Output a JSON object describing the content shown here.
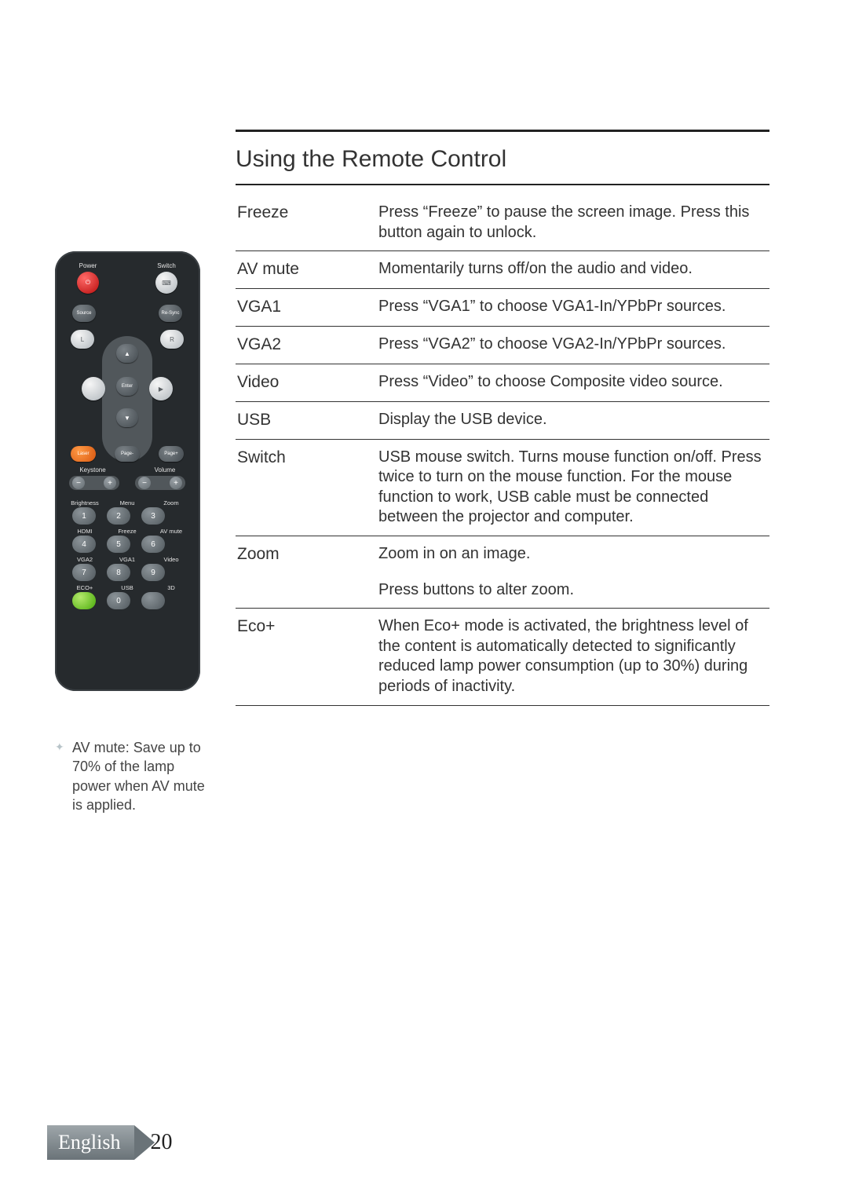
{
  "section_title": "Using the Remote Control",
  "rows": [
    {
      "k": "Freeze",
      "v": "Press “Freeze” to pause the screen image. Press this button again to unlock."
    },
    {
      "k": "AV mute",
      "v": "Momentarily turns off/on the audio and video."
    },
    {
      "k": "VGA1",
      "v": "Press “VGA1” to choose VGA1-In/YPbPr sources."
    },
    {
      "k": "VGA2",
      "v": "Press “VGA2” to choose VGA2-In/YPbPr sources."
    },
    {
      "k": "Video",
      "v": "Press “Video” to choose Composite video source."
    },
    {
      "k": "USB",
      "v": "Display the USB device."
    },
    {
      "k": "Switch",
      "v": "USB mouse switch. Turns mouse function on/off. Press twice to turn on the mouse function. For the mouse function to work, USB cable must be connected between the projector and computer."
    },
    {
      "k": "Zoom",
      "v": "Zoom in on an image."
    },
    {
      "k": "",
      "v": "Press          buttons to alter zoom."
    },
    {
      "k": "Eco+",
      "v": "When Eco+ mode is activated, the brightness level of the content is automatically detected to significantly reduced lamp power consumption (up to 30%) during periods of inactivity."
    }
  ],
  "note": "AV mute: Save up to 70% of the lamp power when AV mute is applied.",
  "footer": {
    "lang": "English",
    "page": "20"
  },
  "remote": {
    "topLabels": {
      "power": "Power",
      "switch": "Switch"
    },
    "midLabels": {
      "source": "Source",
      "resync": "Re-Sync",
      "L": "L",
      "R": "R",
      "enter": "Enter",
      "laser": "Laser",
      "pageM": "Page-",
      "pageP": "Page+"
    },
    "sliders": {
      "keystone": "Keystone",
      "volume": "Volume"
    },
    "numLabels": [
      [
        "Brightness",
        "Menu",
        "Zoom"
      ],
      [
        "HDMI",
        "Freeze",
        "AV mute"
      ],
      [
        "VGA2",
        "VGA1",
        "Video"
      ],
      [
        "ECO+",
        "USB",
        "3D"
      ]
    ],
    "nums": [
      [
        "1",
        "2",
        "3"
      ],
      [
        "4",
        "5",
        "6"
      ],
      [
        "7",
        "8",
        "9"
      ],
      [
        "",
        "0",
        ""
      ]
    ]
  }
}
